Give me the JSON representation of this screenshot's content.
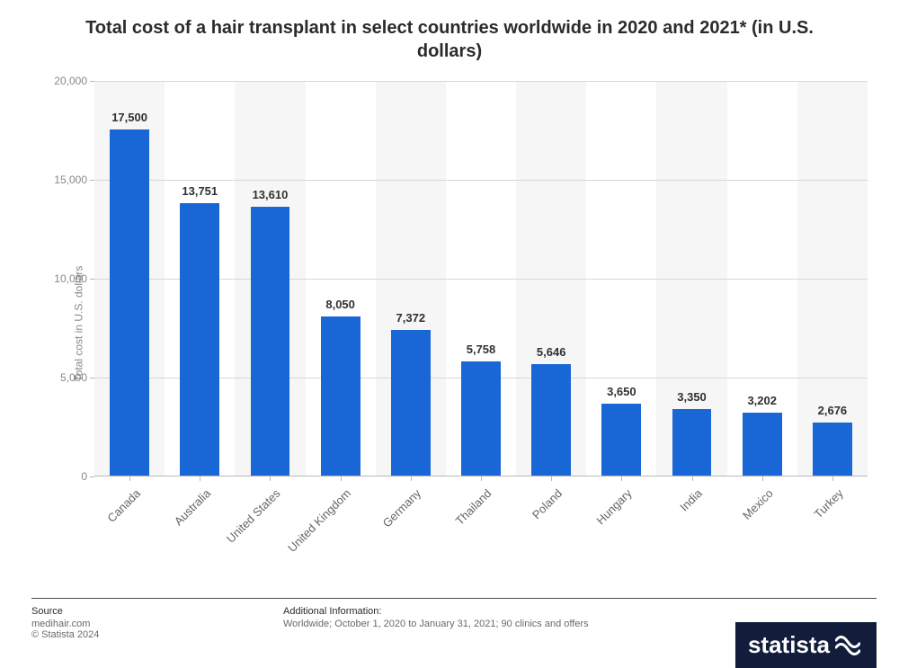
{
  "title": "Total cost of a hair transplant in select countries worldwide in 2020 and 2021* (in U.S. dollars)",
  "chart": {
    "type": "bar",
    "ylabel": "Total cost in U.S. dollars",
    "ylim": [
      0,
      20000
    ],
    "ytick_step": 5000,
    "yticks": [
      0,
      5000,
      10000,
      15000,
      20000
    ],
    "ytick_labels": [
      "0",
      "5,000",
      "10,000",
      "15,000",
      "20,000"
    ],
    "categories": [
      "Canada",
      "Australia",
      "United States",
      "United Kingdom",
      "Germany",
      "Thailand",
      "Poland",
      "Hungary",
      "India",
      "Mexico",
      "Turkey"
    ],
    "values": [
      17500,
      13751,
      13610,
      8050,
      7372,
      5758,
      5646,
      3650,
      3350,
      3202,
      2676
    ],
    "value_labels": [
      "17,500",
      "13,751",
      "13,610",
      "8,050",
      "7,372",
      "5,758",
      "5,646",
      "3,650",
      "3,350",
      "3,202",
      "2,676"
    ],
    "bar_color": "#1966d6",
    "band_color": "#f6f6f6",
    "grid_color": "#d8d8d8",
    "background_color": "#ffffff",
    "bar_width_ratio": 0.56,
    "title_fontsize": 20,
    "label_fontsize": 12,
    "value_label_fontsize": 13
  },
  "footer": {
    "source_hd": "Source",
    "source1": "medihair.com",
    "source2": "© Statista 2024",
    "info_hd": "Additional Information:",
    "info_text": "Worldwide; October 1, 2020 to January 31, 2021; 90 clinics and offers"
  },
  "logo_text": "statista",
  "logo_bg": "#111d3a",
  "logo_color": "#ffffff"
}
